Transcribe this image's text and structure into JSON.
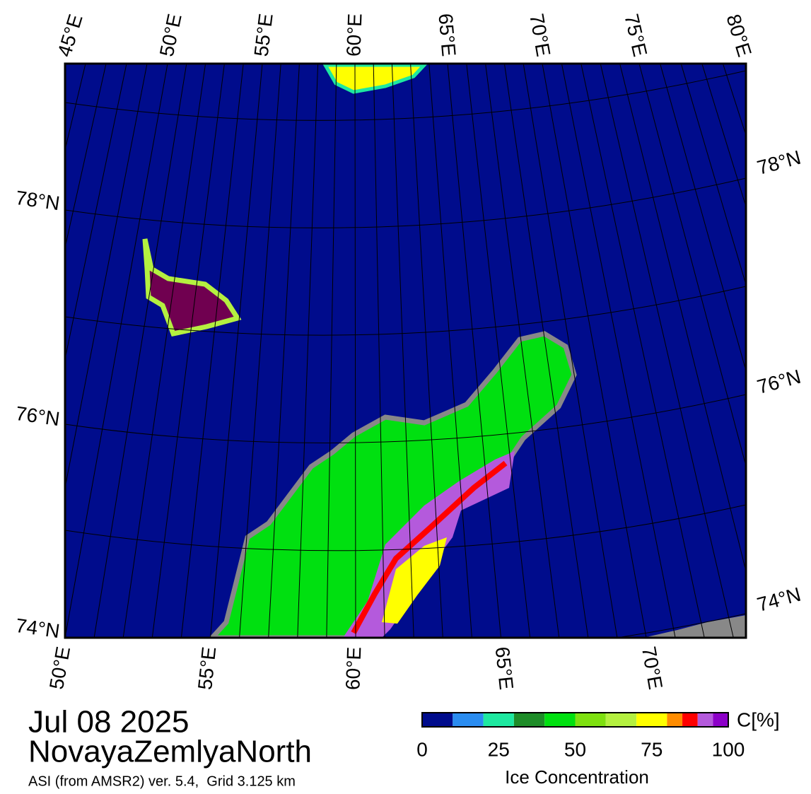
{
  "map": {
    "top_lon_labels": [
      "45°E",
      "50°E",
      "55°E",
      "60°E",
      "65°E",
      "70°E",
      "75°E",
      "80°E"
    ],
    "bottom_lon_labels": [
      "50°E",
      "55°E",
      "60°E",
      "65°E",
      "70°E"
    ],
    "left_lat_labels": [
      "78°N",
      "76°N",
      "74°N"
    ],
    "right_lat_labels": [
      "78°N",
      "76°N",
      "74°N"
    ]
  },
  "info": {
    "date": "Jul 08 2025",
    "region": "NovayaZemlyaNorth",
    "source": "ASI (from AMSR2) ver. 5.4,  Grid 3.125 km"
  },
  "colorbar": {
    "bins": [
      0,
      10,
      20,
      30,
      40,
      50,
      60,
      70,
      80,
      85,
      90,
      95,
      100
    ],
    "colors": [
      "#000c8c",
      "#2a8cf0",
      "#1ee8a0",
      "#1e8c28",
      "#00e010",
      "#7ee010",
      "#b4f040",
      "#ffff00",
      "#ff8c00",
      "#ff0000",
      "#b45adc",
      "#8c00c8"
    ],
    "ticks": [
      0,
      25,
      50,
      75,
      100
    ],
    "unit_label": "C[%]",
    "label": "Ice Concentration"
  }
}
